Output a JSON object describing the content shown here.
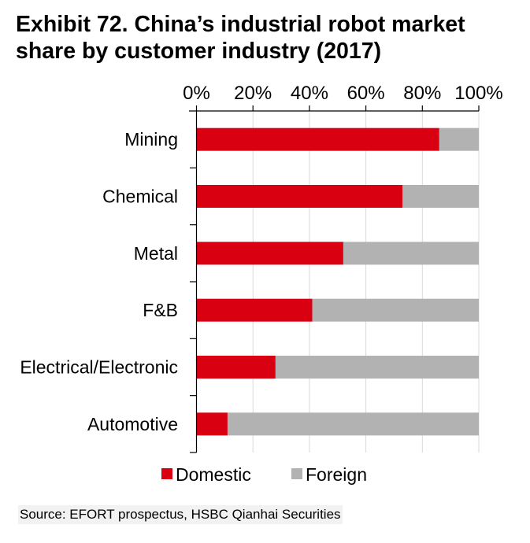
{
  "title": "Exhibit 72. China’s industrial robot market share by customer industry (2017)",
  "source": "Source: EFORT prospectus, HSBC Qianhai Securities",
  "chart_data": {
    "type": "bar",
    "orientation": "horizontal",
    "stacked": true,
    "title": "Exhibit 72. China’s industrial robot market share by customer industry (2017)",
    "xlabel": "",
    "ylabel": "",
    "xlim": [
      0,
      100
    ],
    "x_ticks": [
      "0%",
      "20%",
      "40%",
      "60%",
      "80%",
      "100%"
    ],
    "x_tick_values": [
      0,
      20,
      40,
      60,
      80,
      100
    ],
    "x_axis_position": "top",
    "grid": true,
    "legend_position": "bottom",
    "categories": [
      "Mining",
      "Chemical",
      "Metal",
      "F&B",
      "Electrical/Electronic",
      "Automotive"
    ],
    "series": [
      {
        "name": "Domestic",
        "color": "#d90012",
        "values": [
          86,
          73,
          52,
          41,
          28,
          11
        ]
      },
      {
        "name": "Foreign",
        "color": "#b2b2b2",
        "values": [
          14,
          27,
          48,
          59,
          72,
          89
        ]
      }
    ]
  }
}
